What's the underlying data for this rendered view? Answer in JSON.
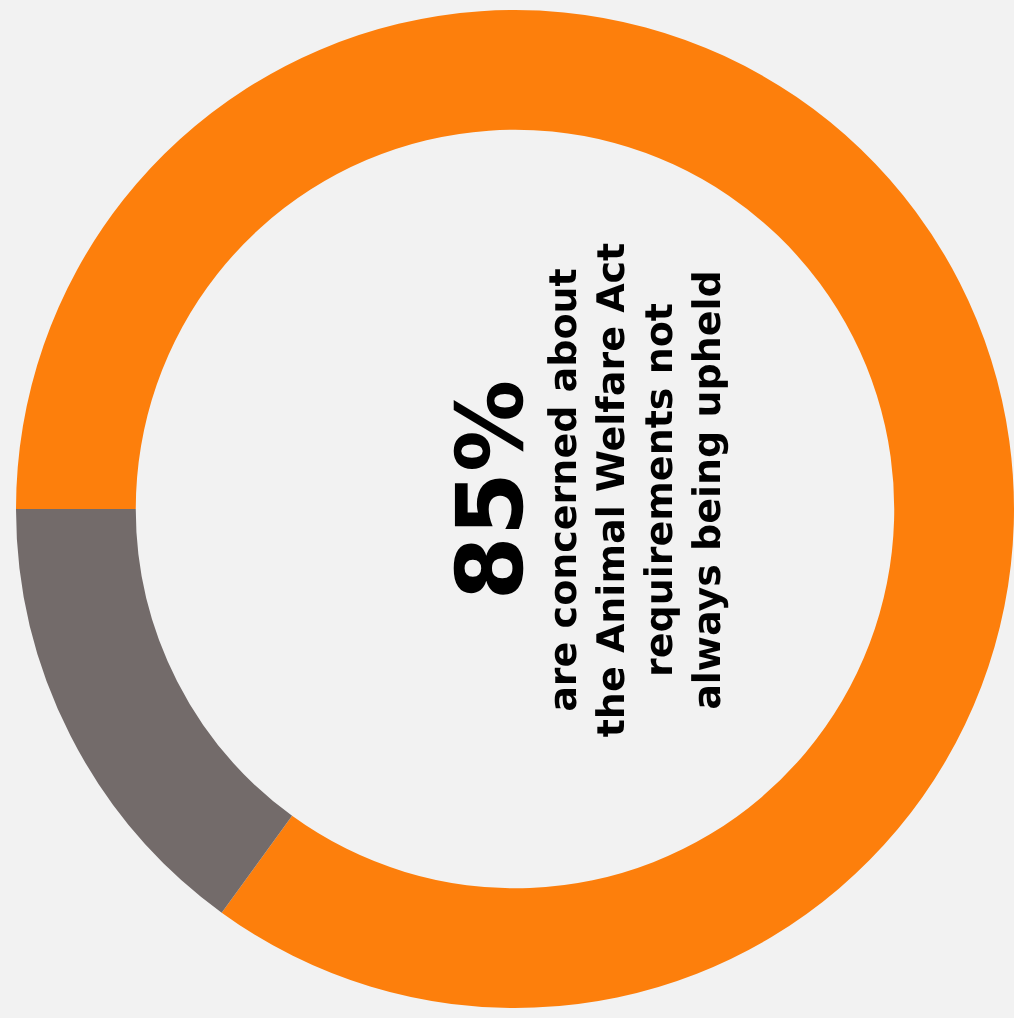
{
  "chart_data": {
    "type": "donut",
    "title": "85%",
    "subtitle": "are concerned about the Animal Welfare Act requirements not always being upheld",
    "categories": [
      null,
      null
    ],
    "values": [
      85,
      15
    ],
    "colors": [
      "#fd7f0c",
      "#736b6a"
    ],
    "legend": false
  }
}
